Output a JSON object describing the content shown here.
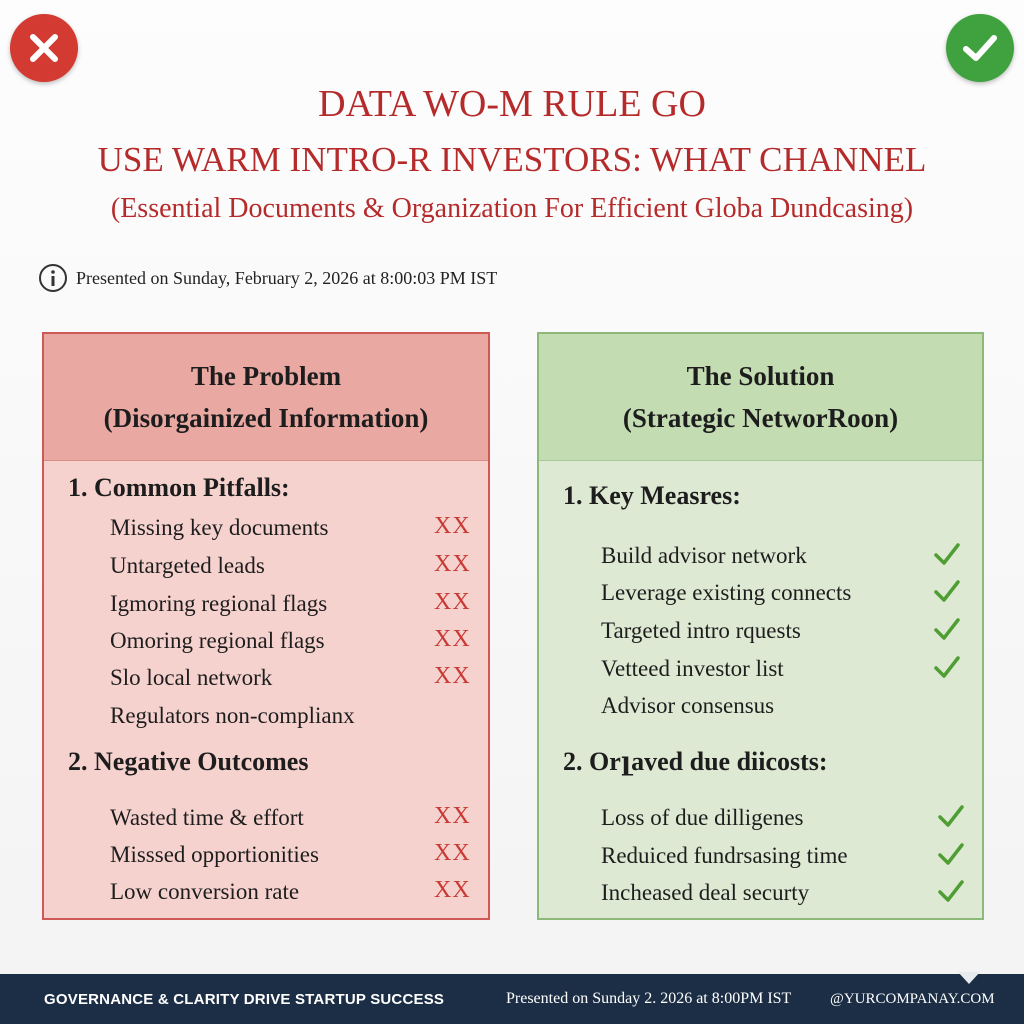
{
  "header": {
    "title_line1": "DATA WO-M RULE GO",
    "title_line2": "USE WARM INTRO-R INVESTORS: WHAT CHANNEL",
    "subtitle": "(Essential Documents & Organization For Efficient Globa Dundcasing)",
    "presented": "Presented on Sunday, February 2, 2026 at 8:00:03 PM IST",
    "left_badge_icon": "x-circle-icon",
    "right_badge_icon": "check-circle-icon"
  },
  "problem": {
    "heading_line1": "The Problem",
    "heading_line2": "(Disorgainized Information)",
    "section1_title": "1. Common Pitfalls:",
    "section1_items": [
      {
        "text": "Missing key documents",
        "mark": "XX"
      },
      {
        "text": "Untargeted leads",
        "mark": "XX"
      },
      {
        "text": "Igmoring regional flags",
        "mark": "XX"
      },
      {
        "text": "Omoring regional flags",
        "mark": "XX"
      },
      {
        "text": "Slo local network",
        "mark": "XX"
      },
      {
        "text": "Regulators non-complianx",
        "mark": ""
      }
    ],
    "section2_title": "2. Negative Outcomes",
    "section2_items": [
      {
        "text": "Wasted time & effort",
        "mark": "XX"
      },
      {
        "text": "Misssed opportionities",
        "mark": "XX"
      },
      {
        "text": "Low conversion rate",
        "mark": "XX"
      }
    ]
  },
  "solution": {
    "heading_line1": "The Solution",
    "heading_line2": "(Strategic NetworRoon)",
    "section1_title": "1. Key Measres:",
    "section1_items": [
      {
        "text": "Build advisor network",
        "checked": true
      },
      {
        "text": "Leverage existing connects",
        "checked": true
      },
      {
        "text": "Targeted intro rquests",
        "checked": true
      },
      {
        "text": "Vetteed  investor list",
        "checked": true
      },
      {
        "text": "Advisor consensus",
        "checked": false
      }
    ],
    "section2_title": "2. Orլaved due diicosts:",
    "section2_items": [
      {
        "text": "Loss of due dilligenes",
        "checked": true
      },
      {
        "text": "Reduiced fundrsasing time",
        "checked": true
      },
      {
        "text": "Incheased deal securty",
        "checked": true
      }
    ]
  },
  "footer": {
    "tagline": "GOVERNANCE & CLARITY DRIVE STARTUP SUCCESS",
    "presented": "Presented on Sunday 2. 2026 at 8:00PM IST",
    "handle": "@YURCOMPANAY.COM"
  },
  "colors": {
    "title_red": "#b52a2a",
    "problem_bg": "#f6d2cf",
    "problem_header": "#eaa8a3",
    "solution_bg": "#dde9d3",
    "solution_header": "#c3dcb2",
    "x_mark": "#c93a34",
    "check_mark": "#4f9e33",
    "footer_bg": "#1c2e45"
  }
}
